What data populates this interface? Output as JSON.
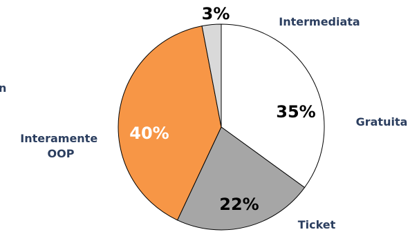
{
  "chart_data": {
    "type": "pie",
    "start_angle_deg": 0,
    "direction": "clockwise",
    "slices": [
      {
        "label": "Gratuita",
        "value": 35,
        "display": "35%",
        "color": "#ffffff"
      },
      {
        "label": "Ticket",
        "value": 22,
        "display": "22%",
        "color": "#a6a6a6"
      },
      {
        "label": "Interamente OOP",
        "value": 40,
        "display": "40%",
        "color": "#f79646"
      },
      {
        "label": "Intermediata",
        "value": 3,
        "display": "3%",
        "color": "#d9d9d9"
      }
    ],
    "stroke_color": "#000000",
    "category_label_color": "#2b3e5f",
    "value_label_colors": [
      "#000000",
      "#000000",
      "#ffffff",
      "#000000"
    ],
    "cut_off_label": "n"
  }
}
